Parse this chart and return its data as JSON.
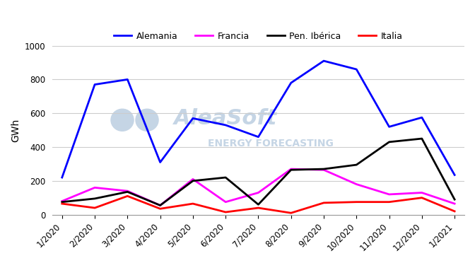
{
  "ylabel": "GWh",
  "ylim": [
    0,
    1000
  ],
  "yticks": [
    0,
    200,
    400,
    600,
    800,
    1000
  ],
  "x_labels": [
    "1/2020",
    "2/2020",
    "3/2020",
    "4/2020",
    "5/2020",
    "6/2020",
    "7/2020",
    "8/2020",
    "9/2020",
    "10/2020",
    "11/2020",
    "12/2020",
    "1/2021"
  ],
  "alemania": [
    220,
    770,
    800,
    310,
    570,
    530,
    460,
    780,
    910,
    860,
    520,
    575,
    235
  ],
  "francia": [
    80,
    160,
    140,
    55,
    210,
    75,
    130,
    270,
    265,
    180,
    120,
    130,
    65
  ],
  "pen_iberica": [
    75,
    95,
    135,
    55,
    200,
    220,
    60,
    265,
    270,
    295,
    430,
    450,
    90
  ],
  "italia": [
    65,
    40,
    110,
    35,
    65,
    15,
    40,
    10,
    70,
    75,
    75,
    100,
    20
  ],
  "color_alemania": "#0000ff",
  "color_francia": "#ff00ff",
  "color_pen_iberica": "#000000",
  "color_italia": "#ff0000",
  "linewidth": 2.0,
  "background_color": "#ffffff",
  "watermark_color": "#c5d5e5",
  "grid_color": "#cccccc",
  "legend_fontsize": 9,
  "ylabel_fontsize": 10,
  "tick_fontsize": 8.5
}
